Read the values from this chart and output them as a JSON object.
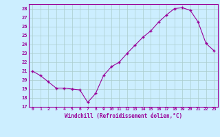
{
  "x": [
    0,
    1,
    2,
    3,
    4,
    5,
    6,
    7,
    8,
    9,
    10,
    11,
    12,
    13,
    14,
    15,
    16,
    17,
    18,
    19,
    20,
    21,
    22,
    23
  ],
  "y": [
    21.0,
    20.5,
    19.8,
    19.1,
    19.1,
    19.0,
    18.9,
    17.5,
    18.5,
    20.5,
    21.5,
    22.0,
    23.0,
    23.9,
    24.8,
    25.5,
    26.5,
    27.3,
    28.0,
    28.1,
    27.8,
    26.5,
    24.1,
    23.3
  ],
  "xlabel": "Windchill (Refroidissement éolien,°C)",
  "line_color": "#990099",
  "marker": "+",
  "bg_color": "#cceeff",
  "grid_color": "#aacccc",
  "label_color": "#990099",
  "xlim": [
    -0.5,
    23.5
  ],
  "ylim": [
    17,
    28.5
  ],
  "yticks": [
    17,
    18,
    19,
    20,
    21,
    22,
    23,
    24,
    25,
    26,
    27,
    28
  ],
  "xticks": [
    0,
    1,
    2,
    3,
    4,
    5,
    6,
    7,
    8,
    9,
    10,
    11,
    12,
    13,
    14,
    15,
    16,
    17,
    18,
    19,
    20,
    21,
    22,
    23
  ]
}
